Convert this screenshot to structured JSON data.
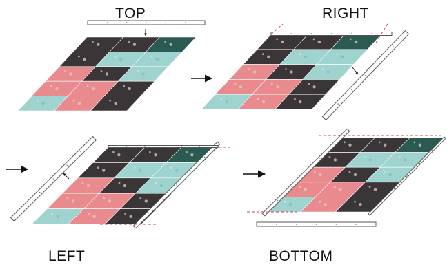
{
  "steps": [
    {
      "label": "TOP"
    },
    {
      "label": "RIGHT"
    },
    {
      "label": "LEFT"
    },
    {
      "label": "BOTTOM"
    }
  ],
  "colors": {
    "dark": "#3a3536",
    "teal_dark": "#2a5a52",
    "mint": "#9fd3cf",
    "pink": "#e98a8f",
    "strip": "#ffffff",
    "guide": "#d9424a",
    "arrow": "#111111"
  }
}
